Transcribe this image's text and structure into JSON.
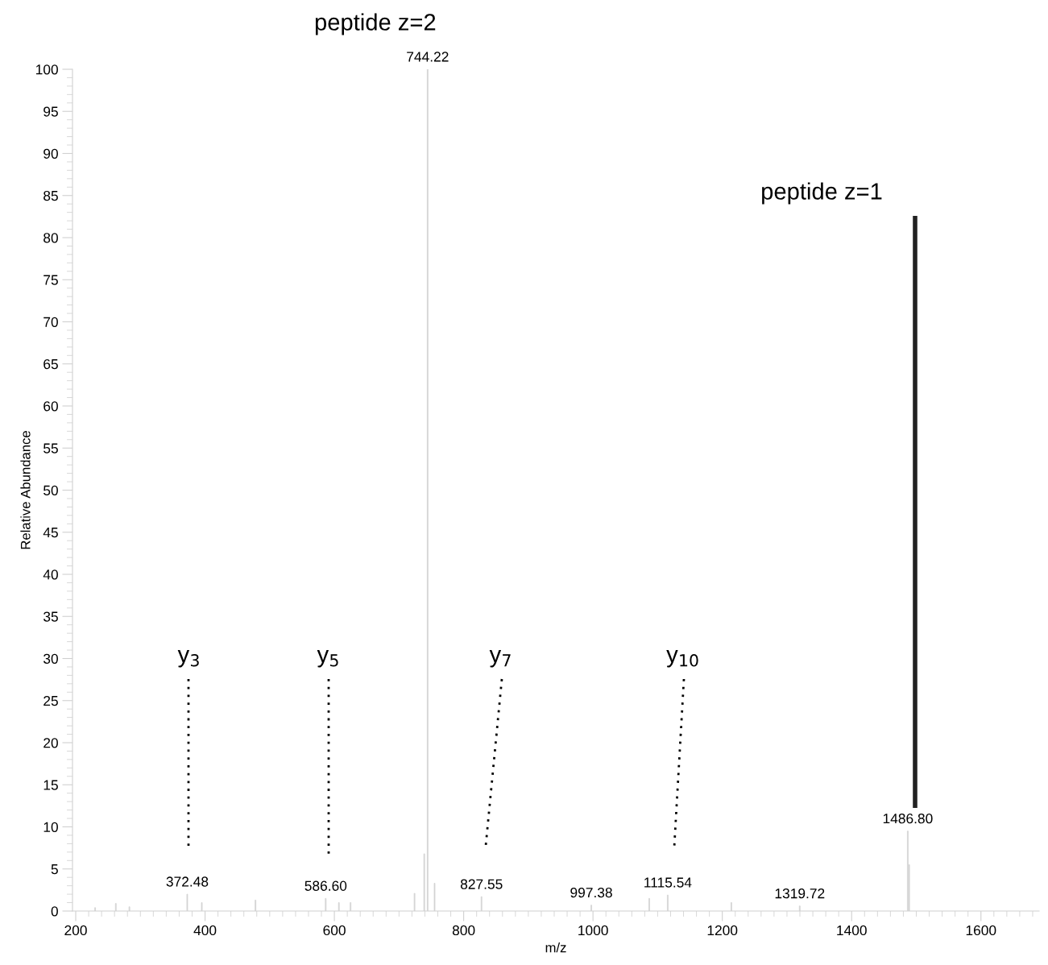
{
  "chart_data": {
    "type": "bar",
    "xlabel": "m/z",
    "ylabel": "Relative Abundance",
    "x": [
      230,
      262,
      283,
      372.48,
      395,
      478,
      586.6,
      607,
      625,
      724,
      739,
      744.22,
      755,
      827.55,
      997.38,
      1087,
      1115.54,
      1214,
      1319.72,
      1486.8,
      1489
    ],
    "values": [
      0.4,
      0.9,
      0.5,
      2.0,
      1.0,
      1.3,
      1.5,
      1.0,
      1.0,
      2.1,
      6.8,
      100,
      3.3,
      1.7,
      0.7,
      1.5,
      1.9,
      1.0,
      0.6,
      9.5,
      5.5
    ],
    "color": "#d4d4d4",
    "xlim": [
      195,
      1690
    ],
    "xticks": [
      200,
      400,
      600,
      800,
      1000,
      1200,
      1400,
      1600
    ],
    "ylim": [
      0,
      100
    ],
    "yticks": [
      0,
      5,
      10,
      15,
      20,
      25,
      30,
      35,
      40,
      45,
      50,
      55,
      60,
      65,
      70,
      75,
      80,
      85,
      90,
      95,
      100
    ],
    "grid": false,
    "legend": false,
    "annotations": [
      {
        "text": "peptide z=2",
        "x": 744.22,
        "y": 100
      },
      "peptide z=1",
      "y$_{3}$",
      "y$_{5}$",
      "y$_{7}$",
      "y$_{10}$",
      {
        "text": "372.48",
        "x": 372.48,
        "y": 2.0
      },
      {
        "text": "586.60",
        "x": 586.6,
        "y": 1.5
      },
      {
        "text": "744.22",
        "x": 744.22,
        "y": 100
      },
      {
        "text": "827.55",
        "x": 827.55,
        "y": 1.7
      },
      {
        "text": "997.38",
        "x": 997.38,
        "y": 0.7
      },
      {
        "text": "1115.54",
        "x": 1115.54,
        "y": 1.9
      },
      {
        "text": "1319.72",
        "x": 1319.72,
        "y": 0.6
      },
      {
        "text": "1486.80",
        "x": 1486.8,
        "y": 9.5
      }
    ]
  }
}
